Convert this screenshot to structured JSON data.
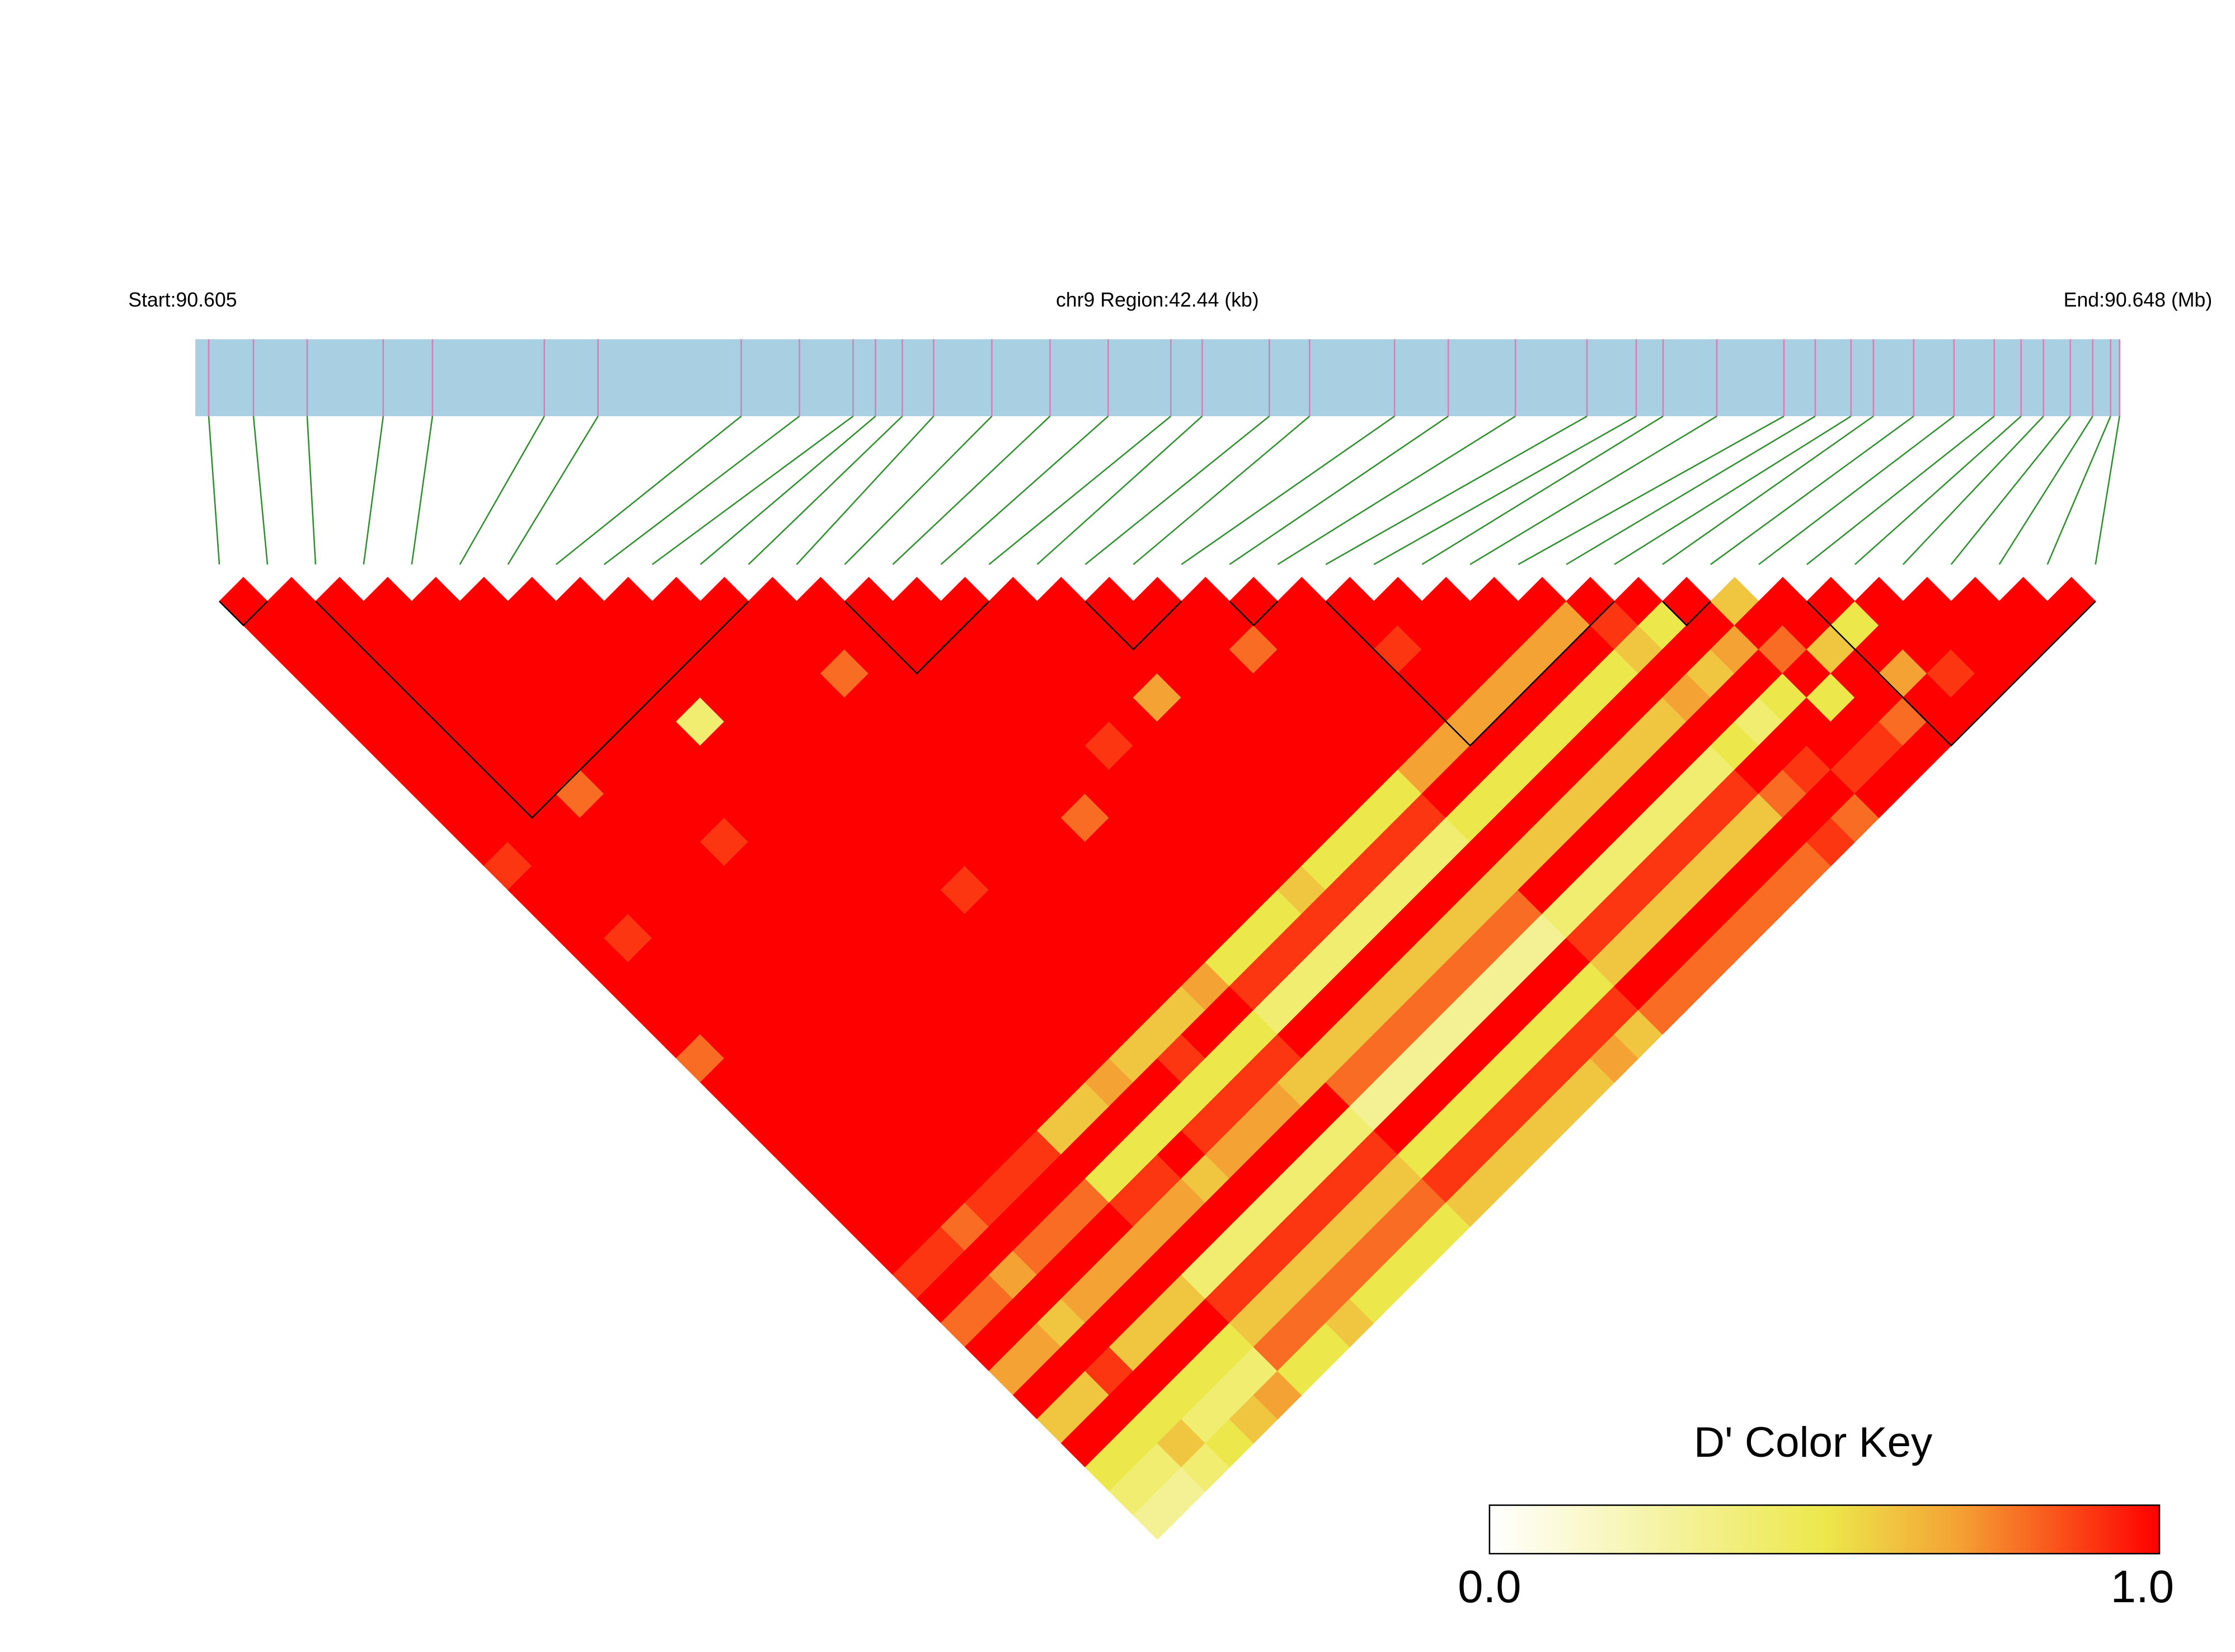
{
  "chart_data": {
    "type": "ld_heatmap",
    "start_label": "Start:90.605",
    "region_label": "chr9 Region:42.44 (kb)",
    "end_label": "End:90.648 (Mb)",
    "xlim": [
      90.605,
      90.648
    ],
    "positions": [
      90.6053,
      90.6063,
      90.6075,
      90.6092,
      90.6103,
      90.6128,
      90.614,
      90.6172,
      90.6185,
      90.6197,
      90.6202,
      90.6208,
      90.6215,
      90.6228,
      90.6241,
      90.6254,
      90.6268,
      90.6275,
      90.629,
      90.6299,
      90.6318,
      90.633,
      90.6345,
      90.6361,
      90.6372,
      90.6378,
      90.639,
      90.6405,
      90.6412,
      90.642,
      90.6425,
      90.6434,
      90.6443,
      90.6452,
      90.6458,
      90.6463,
      90.6469,
      90.6474,
      90.6478,
      90.648
    ],
    "ld": [
      [
        1,
        1,
        1,
        1,
        1,
        1,
        1,
        1,
        1,
        1,
        1,
        0.9,
        1,
        1,
        1,
        1,
        1,
        1,
        1,
        0.8,
        1,
        1,
        1,
        1,
        1,
        1,
        1,
        1,
        0.9,
        1,
        0.8,
        1,
        0.7,
        1,
        0.6,
        1,
        0.5,
        0.4,
        0.3
      ],
      [
        1,
        1,
        1,
        1,
        1,
        1,
        1,
        1,
        1,
        1,
        1,
        1,
        1,
        1,
        0.9,
        1,
        1,
        1,
        1,
        1,
        1,
        1,
        1,
        1,
        1,
        1,
        1,
        0.9,
        1,
        0.8,
        1,
        0.7,
        1,
        0.6,
        1,
        0.5,
        0.4,
        0.3
      ],
      [
        1,
        1,
        1,
        1,
        1,
        1,
        1,
        1,
        1,
        1,
        1,
        1,
        1,
        1,
        1,
        1,
        1,
        1,
        1,
        1,
        1,
        1,
        1,
        1,
        1,
        1,
        0.8,
        1,
        0.7,
        1,
        0.6,
        1,
        0.9,
        1,
        0.5,
        0.6,
        0.4
      ],
      [
        1,
        1,
        1,
        1,
        1,
        1,
        1,
        1,
        0.8,
        1,
        1,
        1,
        1,
        1,
        1,
        1,
        1,
        1,
        1,
        1,
        1,
        1,
        1,
        1,
        1,
        0.9,
        1,
        0.8,
        1,
        0.7,
        1,
        0.6,
        1,
        0.5,
        0.4,
        0.5
      ],
      [
        1,
        1,
        1,
        1,
        1,
        1,
        1,
        1,
        1,
        1,
        1,
        1,
        1,
        1,
        1,
        1,
        1,
        1,
        1,
        1,
        1,
        1,
        1,
        1,
        0.9,
        1,
        0.8,
        1,
        0.7,
        1,
        0.6,
        1,
        0.5,
        0.4,
        0.6
      ],
      [
        1,
        1,
        1,
        1,
        1,
        1,
        1,
        1,
        1,
        1,
        0.9,
        1,
        1,
        1,
        1,
        1,
        1,
        1,
        1,
        1,
        1,
        1,
        1,
        0.9,
        1,
        0.8,
        1,
        0.7,
        1,
        0.6,
        1,
        0.5,
        0.4,
        0.7
      ],
      [
        1,
        1,
        1,
        1,
        1,
        1,
        1,
        1,
        1,
        1,
        1,
        1,
        1,
        1,
        1,
        1,
        1,
        1,
        1,
        1,
        1,
        1,
        0.6,
        1,
        0.5,
        0.9,
        0.7,
        1,
        0.4,
        0.9,
        0.6,
        0.8,
        0.5
      ],
      [
        1,
        1,
        1,
        1,
        1,
        0.4,
        1,
        1,
        1,
        1,
        1,
        1,
        1,
        1,
        1,
        1,
        1,
        1,
        1,
        1,
        1,
        0.6,
        1,
        0.5,
        0.9,
        0.7,
        1,
        0.4,
        0.9,
        0.6,
        0.8,
        0.5
      ],
      [
        1,
        1,
        1,
        1,
        1,
        1,
        1,
        1,
        1,
        1,
        1,
        1,
        1,
        1,
        1,
        1,
        1,
        1,
        1,
        1,
        0.7,
        1,
        0.5,
        1,
        0.6,
        1,
        0.4,
        0.9,
        0.6,
        0.8,
        0.6
      ],
      [
        1,
        1,
        1,
        1,
        1,
        1,
        1,
        1,
        1,
        1,
        1,
        1,
        0.9,
        1,
        1,
        1,
        1,
        1,
        1,
        0.6,
        1,
        0.5,
        0.9,
        0.7,
        1,
        0.4,
        0.9,
        0.6,
        0.8,
        0.5
      ],
      [
        1,
        1,
        1,
        1,
        1,
        1,
        1,
        1,
        1,
        1,
        1,
        1,
        1,
        1,
        1,
        1,
        1,
        1,
        0.6,
        0.9,
        0.5,
        0.9,
        0.7,
        1,
        0.4,
        0.9,
        0.6,
        0.8,
        0.5
      ],
      [
        1,
        1,
        1,
        0.8,
        1,
        1,
        1,
        1,
        1,
        1,
        1,
        1,
        1,
        1,
        1,
        1,
        1,
        0.6,
        1,
        0.5,
        0.9,
        0.7,
        1,
        0.4,
        0.9,
        0.6,
        0.8,
        0.5
      ],
      [
        1,
        1,
        1,
        1,
        1,
        1,
        1,
        1,
        1,
        1,
        1,
        1,
        1,
        1,
        1,
        1,
        0.7,
        1,
        0.5,
        0.9,
        0.6,
        1,
        0.4,
        0.9,
        0.6,
        0.8,
        0.5
      ],
      [
        1,
        1,
        1,
        1,
        1,
        1,
        1,
        1,
        1,
        0.8,
        1,
        1,
        1,
        1,
        1,
        0.5,
        0.9,
        0.4,
        1,
        0.6,
        0.8,
        0.3,
        1,
        0.5,
        0.9,
        0.6
      ],
      [
        1,
        1,
        1,
        1,
        1,
        1,
        1,
        1,
        1,
        1,
        1,
        1,
        1,
        1,
        0.5,
        0.9,
        0.4,
        1,
        0.6,
        0.8,
        0.3,
        1,
        0.5,
        0.9,
        0.6
      ],
      [
        1,
        1,
        1,
        1,
        1,
        1,
        0.9,
        1,
        1,
        1,
        1,
        1,
        1,
        0.5,
        0.9,
        0.4,
        1,
        0.6,
        0.8,
        0.3,
        1,
        0.5,
        0.9,
        0.6
      ],
      [
        1,
        1,
        1,
        1,
        1,
        1,
        1,
        1,
        1,
        1,
        1,
        1,
        0.6,
        0.9,
        0.4,
        1,
        0.6,
        0.8,
        0.3,
        1,
        0.5,
        0.9,
        0.6
      ],
      [
        1,
        1,
        1,
        1,
        0.7,
        1,
        1,
        1,
        1,
        1,
        1,
        0.5,
        0.9,
        0.4,
        1,
        0.6,
        0.8,
        0.3,
        1,
        0.5,
        0.9,
        0.6
      ],
      [
        1,
        1,
        1,
        1,
        1,
        1,
        1,
        1,
        1,
        1,
        0.5,
        0.9,
        0.4,
        1,
        0.6,
        0.8,
        0.3,
        1,
        0.5,
        0.9,
        0.6
      ],
      [
        1,
        1,
        1,
        1,
        1,
        1,
        1,
        1,
        1,
        0.5,
        0.9,
        0.4,
        1,
        0.6,
        0.8,
        0.3,
        1,
        0.5,
        0.9,
        0.7
      ],
      [
        1,
        1,
        0.8,
        1,
        1,
        1,
        1,
        1,
        0.5,
        0.9,
        0.4,
        1,
        0.6,
        0.8,
        0.3,
        1,
        0.5,
        0.9,
        0.6
      ],
      [
        1,
        1,
        1,
        1,
        1,
        1,
        1,
        0.7,
        1,
        0.5,
        1,
        0.6,
        1,
        0.4,
        0.9,
        0.6,
        1,
        0.8
      ],
      [
        1,
        1,
        1,
        1,
        1,
        1,
        0.7,
        1,
        0.5,
        1,
        0.6,
        1,
        0.4,
        0.9,
        0.6,
        1,
        0.8
      ],
      [
        1,
        1,
        0.9,
        1,
        1,
        0.7,
        1,
        0.5,
        1,
        0.6,
        1,
        0.4,
        0.9,
        0.6,
        1,
        0.8
      ],
      [
        1,
        1,
        1,
        1,
        0.7,
        1,
        0.5,
        1,
        0.6,
        1,
        0.4,
        0.9,
        0.6,
        1,
        0.8
      ],
      [
        1,
        1,
        1,
        0.7,
        1,
        0.5,
        1,
        0.6,
        1,
        0.4,
        0.9,
        0.6,
        1,
        0.8
      ],
      [
        1,
        1,
        0.7,
        1,
        0.5,
        1,
        0.6,
        1,
        0.4,
        0.9,
        0.6,
        1,
        0.8
      ],
      [
        1,
        0.7,
        1,
        0.5,
        1,
        0.6,
        1,
        0.4,
        0.9,
        0.6,
        1,
        0.8
      ],
      [
        1,
        0.9,
        0.6,
        1,
        0.7,
        1,
        0.5,
        1,
        0.8,
        1,
        0.9
      ],
      [
        1,
        0.5,
        1,
        0.6,
        1,
        0.4,
        1,
        0.9,
        1,
        0.8
      ],
      [
        1,
        1,
        0.7,
        1,
        0.5,
        1,
        1,
        0.9,
        1
      ],
      [
        0.6,
        1,
        0.8,
        1,
        0.5,
        1,
        0.9,
        1
      ],
      [
        1,
        1,
        0.6,
        1,
        1,
        0.8,
        1
      ],
      [
        1,
        0.5,
        1,
        0.7,
        1,
        1
      ],
      [
        1,
        1,
        1,
        0.9,
        1
      ],
      [
        1,
        1,
        1,
        1
      ],
      [
        1,
        1,
        1
      ],
      [
        1,
        1
      ],
      [
        1
      ]
    ],
    "blocks": [
      [
        0,
        1
      ],
      [
        2,
        11
      ],
      [
        13,
        16
      ],
      [
        18,
        20
      ],
      [
        21,
        22
      ],
      [
        23,
        29
      ],
      [
        30,
        31
      ],
      [
        33,
        39
      ]
    ],
    "bar_color": "#a9cfe2",
    "snp_color": "#e07ab4",
    "link_color": "#2f8f2f",
    "block_color": "#000000",
    "key_title": "D' Color Key",
    "colorscale": [
      [
        0,
        "#ffffff"
      ],
      [
        0.5,
        "#ece84c"
      ],
      [
        0.7,
        "#f4a234"
      ],
      [
        1,
        "#ff0000"
      ]
    ],
    "key_ticks": [
      {
        "value": 0,
        "label": "0.0"
      },
      {
        "value": 1,
        "label": "1.0"
      }
    ]
  }
}
